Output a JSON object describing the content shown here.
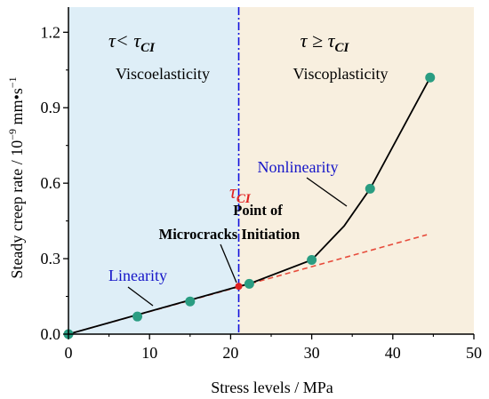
{
  "chart_data": {
    "type": "scatter",
    "xlabel": "Stress levels / MPa",
    "ylabel": {
      "main": "Steady creep rate / 10",
      "sup1": "−9",
      "mid": " mm•s",
      "sup2": "−1"
    },
    "xlim": [
      0,
      50
    ],
    "ylim": [
      0,
      1.3
    ],
    "x_ticks": [
      0,
      10,
      20,
      30,
      40,
      50
    ],
    "x_tick_labels": [
      "0",
      "10",
      "20",
      "30",
      "40",
      "50"
    ],
    "y_ticks": [
      0,
      0.3,
      0.6,
      0.9,
      1.2
    ],
    "y_tick_labels": [
      "0.0",
      "0.3",
      "0.6",
      "0.9",
      "1.2"
    ],
    "grid": false,
    "points": {
      "x": [
        0,
        8.5,
        15,
        22.3,
        30,
        37.2,
        44.6
      ],
      "y": [
        0,
        0.07,
        0.13,
        0.2,
        0.295,
        0.578,
        1.02
      ],
      "color": "#2a9d82"
    },
    "curve": {
      "x": [
        0,
        21,
        22.3,
        30,
        34,
        37.2,
        44.6
      ],
      "y": [
        0,
        0.19,
        0.2,
        0.295,
        0.43,
        0.578,
        1.02
      ],
      "color": "#000000"
    },
    "linear_extension": {
      "x": [
        0.3,
        44.2
      ],
      "y": [
        0.003,
        0.395
      ],
      "color": "#e74c3c"
    },
    "threshold": {
      "x": 21,
      "y": 0.19,
      "color": "#1010dd",
      "marker_color": "#e02020"
    },
    "regions": [
      {
        "x_from": 0,
        "x_to": 21,
        "color": "#deeef7"
      },
      {
        "x_from": 21,
        "x_to": 50,
        "color": "#f8efdf"
      }
    ],
    "region_labels": {
      "left_symbol": "τ< τ",
      "left_sub": "CI",
      "right_symbol": "τ ≥ τ",
      "right_sub": "CI",
      "left_name": "Viscoelasticity",
      "right_name": "Viscoplasticity"
    },
    "annotations": {
      "tau_ci_main": "τ",
      "tau_ci_sub": "CI",
      "tau_color": "#e02020",
      "point_line1": "Point of",
      "point_line2": "Microcracks Initiation",
      "linearity": "Linearity",
      "nonlinearity": "Nonlinearity",
      "label_color": "#1515c8"
    }
  }
}
